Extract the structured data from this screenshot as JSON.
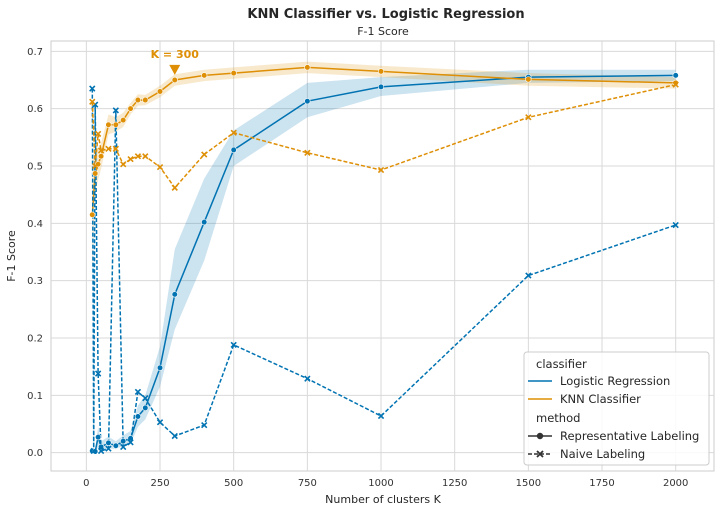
{
  "chart_data": {
    "type": "line",
    "title": "KNN Classifier vs. Logistic Regression",
    "subtitle": "F-1 Score",
    "xlabel": "Number of clusters K",
    "ylabel": "F-1 Score",
    "xlim": [
      -120,
      2130
    ],
    "ylim": [
      -0.032,
      0.718
    ],
    "xticks": [
      0,
      250,
      500,
      750,
      1000,
      1250,
      1500,
      1750,
      2000
    ],
    "yticks": [
      0.0,
      0.1,
      0.2,
      0.3,
      0.4,
      0.5,
      0.6,
      0.7
    ],
    "grid": true,
    "legend_placement": "lower-right",
    "legend": {
      "hue_title": "classifier",
      "style_title": "method",
      "hue_entries": [
        "Logistic Regression",
        "KNN Classifier"
      ],
      "style_entries": [
        "Representative Labeling",
        "Naive Labeling"
      ]
    },
    "colors": {
      "logistic_regression": "#0173b2",
      "knn_classifier": "#de8f05",
      "grid": "#d9d9d9",
      "axes": "#cccccc"
    },
    "annotation": {
      "text": "K = 300",
      "x": 300,
      "y": 0.666,
      "color": "#de8f05"
    },
    "series": [
      {
        "name": "Logistic Regression",
        "method": "Representative Labeling",
        "color_key": "logistic_regression",
        "dash": "solid",
        "marker": "circle",
        "x": [
          20,
          30,
          40,
          50,
          75,
          100,
          125,
          150,
          175,
          200,
          250,
          300,
          400,
          500,
          750,
          1000,
          1500,
          2000
        ],
        "y": [
          0.003,
          0.002,
          0.027,
          0.01,
          0.017,
          0.012,
          0.02,
          0.025,
          0.063,
          0.078,
          0.148,
          0.276,
          0.402,
          0.528,
          0.613,
          0.638,
          0.655,
          0.658
        ],
        "ci_low": [
          0.0,
          0.0,
          0.01,
          0.003,
          0.008,
          0.006,
          0.012,
          0.015,
          0.045,
          0.058,
          0.115,
          0.215,
          0.335,
          0.5,
          0.585,
          0.622,
          0.645,
          0.648
        ],
        "ci_high": [
          0.008,
          0.006,
          0.045,
          0.02,
          0.028,
          0.02,
          0.03,
          0.038,
          0.082,
          0.1,
          0.185,
          0.355,
          0.478,
          0.562,
          0.645,
          0.655,
          0.668,
          0.668
        ]
      },
      {
        "name": "KNN Classifier",
        "method": "Representative Labeling",
        "color_key": "knn_classifier",
        "dash": "solid",
        "marker": "circle",
        "x": [
          20,
          30,
          40,
          50,
          75,
          100,
          125,
          150,
          175,
          200,
          250,
          300,
          400,
          500,
          750,
          1000,
          1500,
          2000
        ],
        "y": [
          0.415,
          0.487,
          0.503,
          0.517,
          0.572,
          0.572,
          0.58,
          0.6,
          0.615,
          0.615,
          0.63,
          0.65,
          0.658,
          0.662,
          0.672,
          0.665,
          0.651,
          0.645
        ],
        "ci_low": [
          0.31,
          0.455,
          0.475,
          0.495,
          0.555,
          0.56,
          0.568,
          0.59,
          0.605,
          0.606,
          0.62,
          0.64,
          0.648,
          0.652,
          0.662,
          0.655,
          0.64,
          0.635
        ],
        "ci_high": [
          0.52,
          0.52,
          0.53,
          0.54,
          0.59,
          0.585,
          0.593,
          0.61,
          0.625,
          0.624,
          0.64,
          0.66,
          0.668,
          0.672,
          0.682,
          0.675,
          0.662,
          0.655
        ]
      },
      {
        "name": "Logistic Regression",
        "method": "Naive Labeling",
        "color_key": "logistic_regression",
        "dash": "dashed",
        "marker": "x",
        "x": [
          20,
          25,
          30,
          40,
          50,
          75,
          100,
          125,
          150,
          175,
          200,
          250,
          300,
          400,
          500,
          750,
          1000,
          1500,
          2000
        ],
        "y": [
          0.635,
          0.003,
          0.607,
          0.138,
          0.003,
          0.007,
          0.597,
          0.01,
          0.018,
          0.106,
          0.095,
          0.053,
          0.029,
          0.048,
          0.188,
          0.129,
          0.064,
          0.309,
          0.397
        ]
      },
      {
        "name": "KNN Classifier",
        "method": "Naive Labeling",
        "color_key": "knn_classifier",
        "dash": "dashed",
        "marker": "x",
        "x": [
          20,
          30,
          40,
          50,
          75,
          100,
          125,
          150,
          175,
          200,
          250,
          300,
          400,
          500,
          750,
          1000,
          1500,
          2000
        ],
        "y": [
          0.612,
          0.5,
          0.556,
          0.527,
          0.53,
          0.53,
          0.503,
          0.512,
          0.517,
          0.517,
          0.498,
          0.462,
          0.52,
          0.558,
          0.523,
          0.493,
          0.585,
          0.642
        ]
      }
    ]
  }
}
